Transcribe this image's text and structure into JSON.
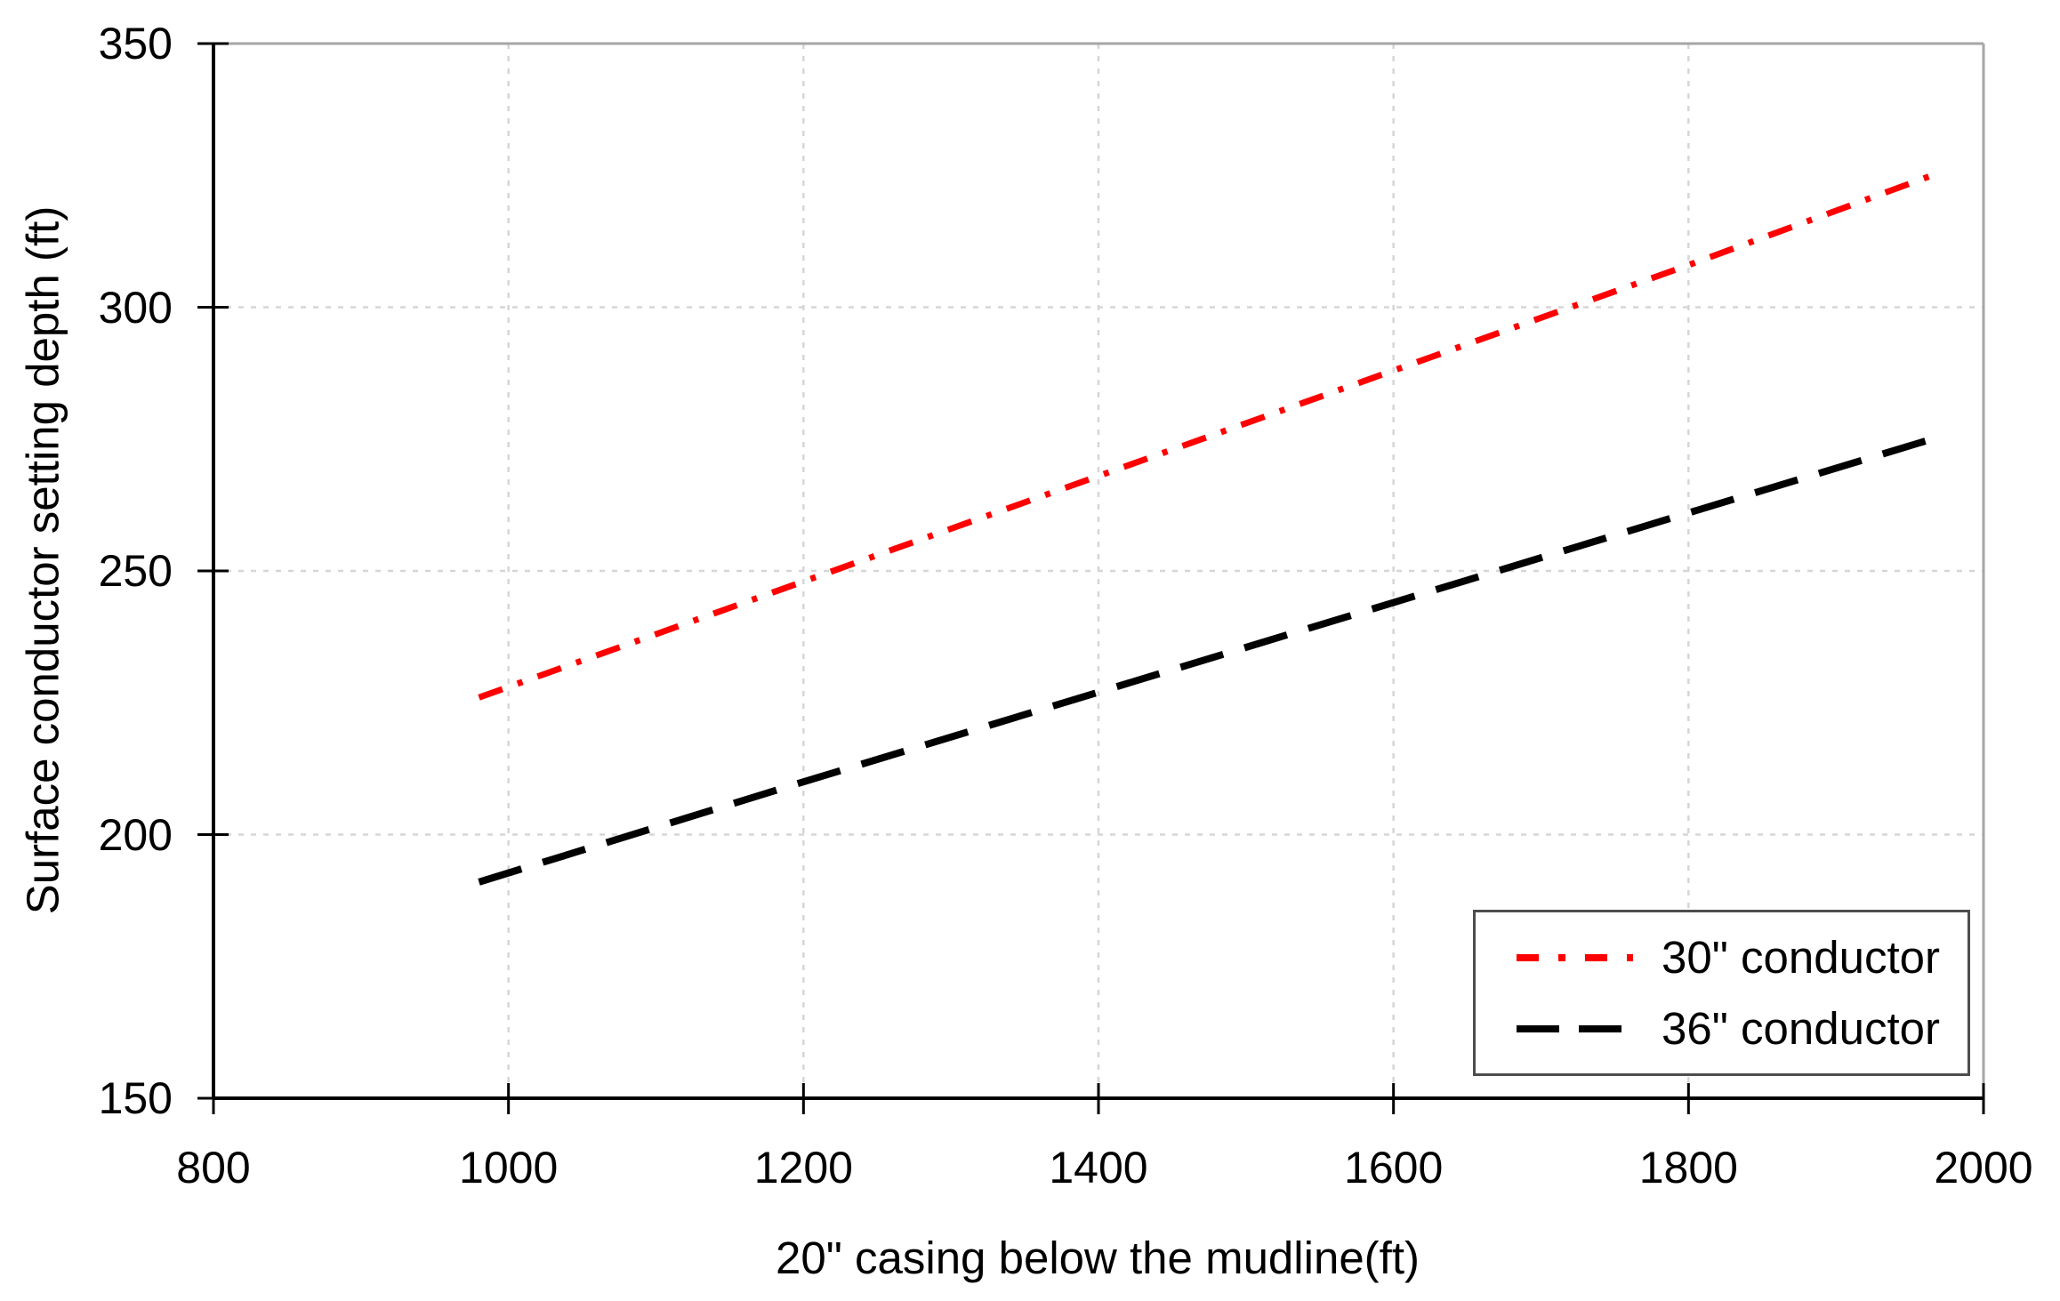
{
  "chart_data": {
    "type": "line",
    "title": "",
    "xlabel": "20\" casing below the mudline(ft)",
    "ylabel": "Surface conductor setting depth (ft)",
    "xlim": [
      800,
      2000
    ],
    "ylim": [
      150,
      350
    ],
    "xticks": [
      800,
      1000,
      1200,
      1400,
      1600,
      1800,
      2000
    ],
    "yticks": [
      150,
      200,
      250,
      300,
      350
    ],
    "grid": "dashed light gray gridlines at every x and y tick",
    "legend_position": "inside bottom-right, boxed",
    "series": [
      {
        "name": "30\" conductor",
        "color": "#ff0000",
        "line_style": "dash-dot",
        "x": [
          980,
          1200,
          1400,
          1600,
          1800,
          1965
        ],
        "y": [
          226,
          248,
          268,
          288,
          308,
          325
        ]
      },
      {
        "name": "36\" conductor",
        "color": "#000000",
        "line_style": "dashed",
        "x": [
          980,
          1200,
          1400,
          1600,
          1800,
          1965
        ],
        "y": [
          191,
          210,
          227,
          244,
          261,
          275
        ]
      }
    ]
  },
  "colors": {
    "background": "#ffffff",
    "axis": "#000000",
    "gridline": "#d6d6d6",
    "plot_border": "#a6a6a6",
    "legend_border": "#4d4d4d",
    "text": "#000000"
  }
}
